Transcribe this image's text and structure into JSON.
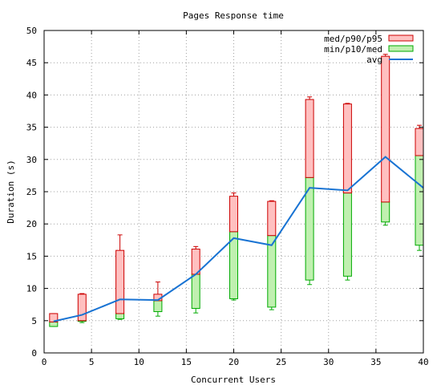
{
  "chart_data": {
    "type": "candlestick",
    "title": "Pages Response time",
    "xlabel": "Concurrent Users",
    "ylabel": "Duration (s)",
    "xlim": [
      0,
      40
    ],
    "ylim": [
      0,
      50
    ],
    "x_ticks": [
      0,
      5,
      10,
      15,
      20,
      25,
      30,
      35,
      40
    ],
    "y_ticks": [
      0,
      5,
      10,
      15,
      20,
      25,
      30,
      35,
      40,
      45,
      50
    ],
    "grid": true,
    "legend_position": "top-right",
    "colors": {
      "upper_fill": "#ffc0c0",
      "upper_edge": "#cc0000",
      "lower_fill": "#c0f0b0",
      "lower_edge": "#00aa00",
      "avg_line": "#1873d3"
    },
    "legend": [
      {
        "label": "med/p90/p95",
        "kind": "upper-box"
      },
      {
        "label": "min/p10/med",
        "kind": "lower-box"
      },
      {
        "label": "avg",
        "kind": "line"
      }
    ],
    "boxes": [
      {
        "x": 1,
        "min": 4.1,
        "p10": 4.1,
        "med": 4.8,
        "p90": 6.1,
        "p95": 6.1
      },
      {
        "x": 4,
        "min": 4.7,
        "p10": 4.9,
        "med": 5.0,
        "p90": 9.1,
        "p95": 9.2
      },
      {
        "x": 8,
        "min": 5.2,
        "p10": 5.3,
        "med": 6.1,
        "p90": 15.9,
        "p95": 18.3
      },
      {
        "x": 12,
        "min": 5.7,
        "p10": 6.4,
        "med": 8.1,
        "p90": 9.1,
        "p95": 11.0
      },
      {
        "x": 16,
        "min": 6.2,
        "p10": 6.9,
        "med": 12.2,
        "p90": 16.1,
        "p95": 16.5
      },
      {
        "x": 20,
        "min": 8.2,
        "p10": 8.4,
        "med": 18.8,
        "p90": 24.3,
        "p95": 24.8
      },
      {
        "x": 24,
        "min": 6.7,
        "p10": 7.1,
        "med": 18.2,
        "p90": 23.5,
        "p95": 23.6
      },
      {
        "x": 28,
        "min": 10.6,
        "p10": 11.3,
        "med": 27.2,
        "p90": 39.3,
        "p95": 39.7
      },
      {
        "x": 32,
        "min": 11.3,
        "p10": 11.9,
        "med": 24.8,
        "p90": 38.6,
        "p95": 38.7
      },
      {
        "x": 36,
        "min": 19.8,
        "p10": 20.3,
        "med": 23.4,
        "p90": 46.0,
        "p95": 46.3
      },
      {
        "x": 40,
        "min": 15.9,
        "p10": 16.7,
        "med": 30.6,
        "p90": 34.8,
        "p95": 35.3
      }
    ],
    "avg": {
      "x": [
        1,
        4,
        8,
        12,
        16,
        20,
        24,
        28,
        32,
        36,
        40
      ],
      "y": [
        4.9,
        5.9,
        8.3,
        8.2,
        12.2,
        17.8,
        16.7,
        25.6,
        25.2,
        30.4,
        25.6
      ]
    }
  }
}
